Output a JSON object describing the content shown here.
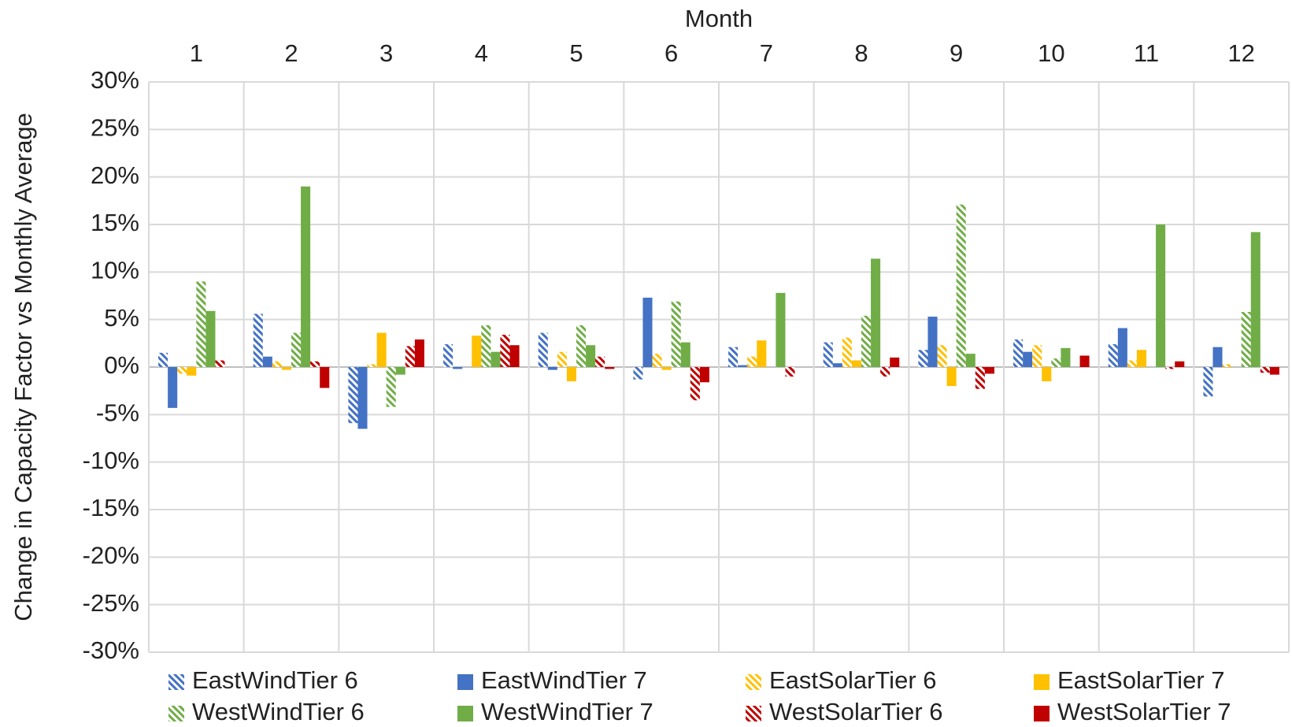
{
  "chart_data": {
    "type": "bar",
    "x_label": "Month",
    "y_label": "Change in Capacity Factor vs Monthly Average",
    "categories": [
      "1",
      "2",
      "3",
      "4",
      "5",
      "6",
      "7",
      "8",
      "9",
      "10",
      "11",
      "12"
    ],
    "series": [
      {
        "name": "EastWindTier 6",
        "color": "#4472c4",
        "hatch": true,
        "values": [
          1.5,
          5.6,
          -5.9,
          2.4,
          3.6,
          -1.3,
          2.1,
          2.6,
          1.8,
          2.9,
          2.4,
          -3.1
        ]
      },
      {
        "name": "EastWindTier 7",
        "color": "#4472c4",
        "hatch": false,
        "values": [
          -4.3,
          1.1,
          -6.5,
          -0.2,
          -0.3,
          7.3,
          0.2,
          0.4,
          5.3,
          1.6,
          4.1,
          2.1
        ]
      },
      {
        "name": "EastSolarTier 6",
        "color": "#ffc000",
        "hatch": true,
        "values": [
          -0.7,
          0.6,
          0.3,
          0,
          1.6,
          1.4,
          1.1,
          3.1,
          2.3,
          2.3,
          0.7,
          0.3
        ]
      },
      {
        "name": "EastSolarTier 7",
        "color": "#ffc000",
        "hatch": false,
        "values": [
          -0.9,
          -0.3,
          3.6,
          3.3,
          -1.5,
          -0.3,
          2.8,
          0.7,
          -2.0,
          -1.5,
          1.8,
          0
        ]
      },
      {
        "name": "WestWindTier 6",
        "color": "#70ad47",
        "hatch": true,
        "values": [
          9.0,
          3.6,
          -4.2,
          4.4,
          4.4,
          6.9,
          0,
          5.4,
          17.1,
          0.9,
          0,
          5.8
        ]
      },
      {
        "name": "WestWindTier 7",
        "color": "#70ad47",
        "hatch": false,
        "values": [
          5.9,
          19.0,
          -0.8,
          1.6,
          2.3,
          2.6,
          7.8,
          11.4,
          1.4,
          2.0,
          15.0,
          14.2
        ]
      },
      {
        "name": "WestSolarTier 6",
        "color": "#c00000",
        "hatch": true,
        "values": [
          0.7,
          0.6,
          2.2,
          3.4,
          1.1,
          -3.5,
          -1.0,
          -1.0,
          -2.3,
          0,
          -0.2,
          -0.6
        ]
      },
      {
        "name": "WestSolarTier 7",
        "color": "#c00000",
        "hatch": false,
        "values": [
          0,
          -2.2,
          2.9,
          2.3,
          -0.2,
          -1.6,
          0,
          1.0,
          -0.7,
          1.2,
          0.6,
          -0.8
        ]
      }
    ],
    "ylim": [
      -30,
      30
    ],
    "yticks": [
      {
        "value": -30,
        "label": "-30%"
      },
      {
        "value": -25,
        "label": "-25%"
      },
      {
        "value": -20,
        "label": "-20%"
      },
      {
        "value": -15,
        "label": "-15%"
      },
      {
        "value": -10,
        "label": "-10%"
      },
      {
        "value": -5,
        "label": "-5%"
      },
      {
        "value": 0,
        "label": "0%"
      },
      {
        "value": 5,
        "label": "5%"
      },
      {
        "value": 10,
        "label": "10%"
      },
      {
        "value": 15,
        "label": "15%"
      },
      {
        "value": 20,
        "label": "20%"
      },
      {
        "value": 25,
        "label": "25%"
      },
      {
        "value": 30,
        "label": "30%"
      }
    ],
    "grid": true,
    "x_axis_position": "top",
    "legend": "bottom"
  }
}
